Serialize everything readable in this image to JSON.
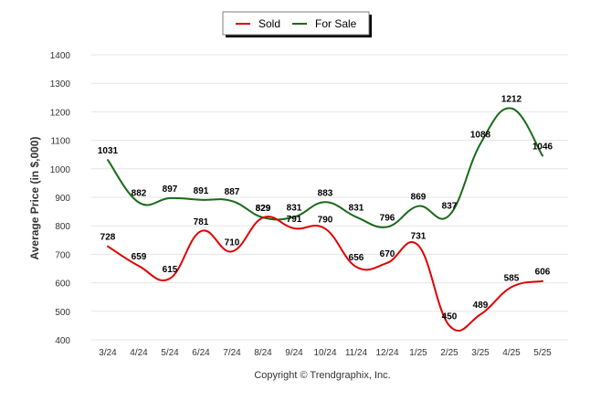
{
  "chart_data": {
    "type": "line",
    "categories": [
      "3/24",
      "4/24",
      "5/24",
      "6/24",
      "7/24",
      "8/24",
      "9/24",
      "10/24",
      "11/24",
      "12/24",
      "1/25",
      "2/25",
      "3/25",
      "4/25",
      "5/25"
    ],
    "series": [
      {
        "name": "Sold",
        "color": "#e00000",
        "values": [
          728,
          659,
          615,
          781,
          710,
          829,
          791,
          790,
          656,
          670,
          731,
          450,
          489,
          585,
          606
        ]
      },
      {
        "name": "For Sale",
        "color": "#1a6a1a",
        "values": [
          1031,
          882,
          897,
          891,
          887,
          829,
          831,
          883,
          831,
          796,
          869,
          837,
          1088,
          1212,
          1046
        ]
      }
    ],
    "ylabel": "Average Price (in $,000)",
    "xlabel": "",
    "ylim": [
      400,
      1400
    ],
    "yticks": [
      400,
      500,
      600,
      700,
      800,
      900,
      1000,
      1100,
      1200,
      1300,
      1400
    ],
    "grid": true,
    "legend": "top-center",
    "data_labels": true
  },
  "footer": {
    "copyright": "Copyright © Trendgraphix, Inc."
  }
}
